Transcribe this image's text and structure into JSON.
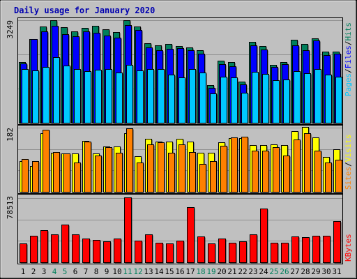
{
  "chart_data": [
    {
      "type": "bar",
      "panel": "hits-files-pages",
      "title": "Daily usage for January 2020",
      "ylabel_max": "3249",
      "ymax": 3249,
      "legend": [
        "Pages",
        "Files",
        "Hits"
      ],
      "categories": [
        "1",
        "2",
        "3",
        "4",
        "5",
        "6",
        "7",
        "8",
        "9",
        "10",
        "11",
        "12",
        "13",
        "14",
        "15",
        "16",
        "17",
        "18",
        "19",
        "20",
        "21",
        "22",
        "23",
        "24",
        "25",
        "26",
        "27",
        "28",
        "29",
        "30",
        "31"
      ],
      "weekend_days": [
        "4",
        "5",
        "11",
        "12",
        "18",
        "19",
        "25",
        "26"
      ],
      "series": [
        {
          "name": "Hits",
          "values": [
            1910,
            2640,
            3020,
            3220,
            3000,
            2870,
            2980,
            3050,
            2940,
            2850,
            3230,
            3030,
            2500,
            2430,
            2470,
            2420,
            2370,
            2280,
            1190,
            1960,
            1920,
            1290,
            2550,
            2410,
            1830,
            1920,
            2610,
            2480,
            2660,
            2230,
            2240
          ]
        },
        {
          "name": "Files",
          "values": [
            1860,
            2630,
            2870,
            3050,
            2790,
            2720,
            2870,
            2830,
            2740,
            2680,
            3080,
            2920,
            2380,
            2280,
            2330,
            2350,
            2290,
            2180,
            1100,
            1850,
            1770,
            1200,
            2440,
            2300,
            1760,
            1850,
            2430,
            2280,
            2590,
            2130,
            2170
          ]
        },
        {
          "name": "Pages",
          "values": [
            1680,
            1640,
            1750,
            2060,
            1800,
            1680,
            1620,
            1660,
            1700,
            1580,
            1820,
            1640,
            1700,
            1680,
            1520,
            1420,
            1700,
            1580,
            930,
            1450,
            1430,
            950,
            1600,
            1540,
            1330,
            1360,
            1620,
            1560,
            1700,
            1510,
            1440
          ]
        }
      ],
      "colors": {
        "Hits": "#00805c",
        "Files": "#0000ff",
        "Pages": "#00c8ff"
      }
    },
    {
      "type": "bar",
      "panel": "visits-sites",
      "ylabel_max": "182",
      "ymax": 182,
      "legend": [
        "Sites",
        "Visits"
      ],
      "series": [
        {
          "name": "Visits",
          "values": [
            86,
            72,
            165,
            110,
            108,
            107,
            142,
            107,
            128,
            127,
            165,
            100,
            149,
            140,
            140,
            148,
            140,
            110,
            110,
            138,
            150,
            150,
            131,
            131,
            133,
            131,
            170,
            182,
            152,
            98,
            120
          ]
        },
        {
          "name": "Sites",
          "values": [
            92,
            87,
            175,
            112,
            108,
            82,
            140,
            101,
            125,
            110,
            178,
            82,
            134,
            138,
            110,
            133,
            112,
            78,
            86,
            129,
            152,
            154,
            115,
            115,
            126,
            102,
            146,
            165,
            116,
            83,
            90
          ]
        }
      ],
      "colors": {
        "Visits": "#ffff00",
        "Sites": "#ff8000"
      }
    },
    {
      "type": "bar",
      "panel": "kbytes",
      "ylabel_max": "78513",
      "ymax": 78513,
      "legend": [
        "KBytes"
      ],
      "series": [
        {
          "name": "KBytes",
          "values": [
            23000,
            32500,
            39000,
            34000,
            45500,
            34000,
            28500,
            27000,
            25600,
            28500,
            78513,
            26500,
            34000,
            23500,
            23000,
            26000,
            67000,
            31000,
            22500,
            29000,
            23500,
            25000,
            34000,
            65000,
            24000,
            24000,
            31000,
            30500,
            32000,
            32000,
            50000
          ]
        }
      ],
      "colors": {
        "KBytes": "#ff0000"
      }
    }
  ]
}
